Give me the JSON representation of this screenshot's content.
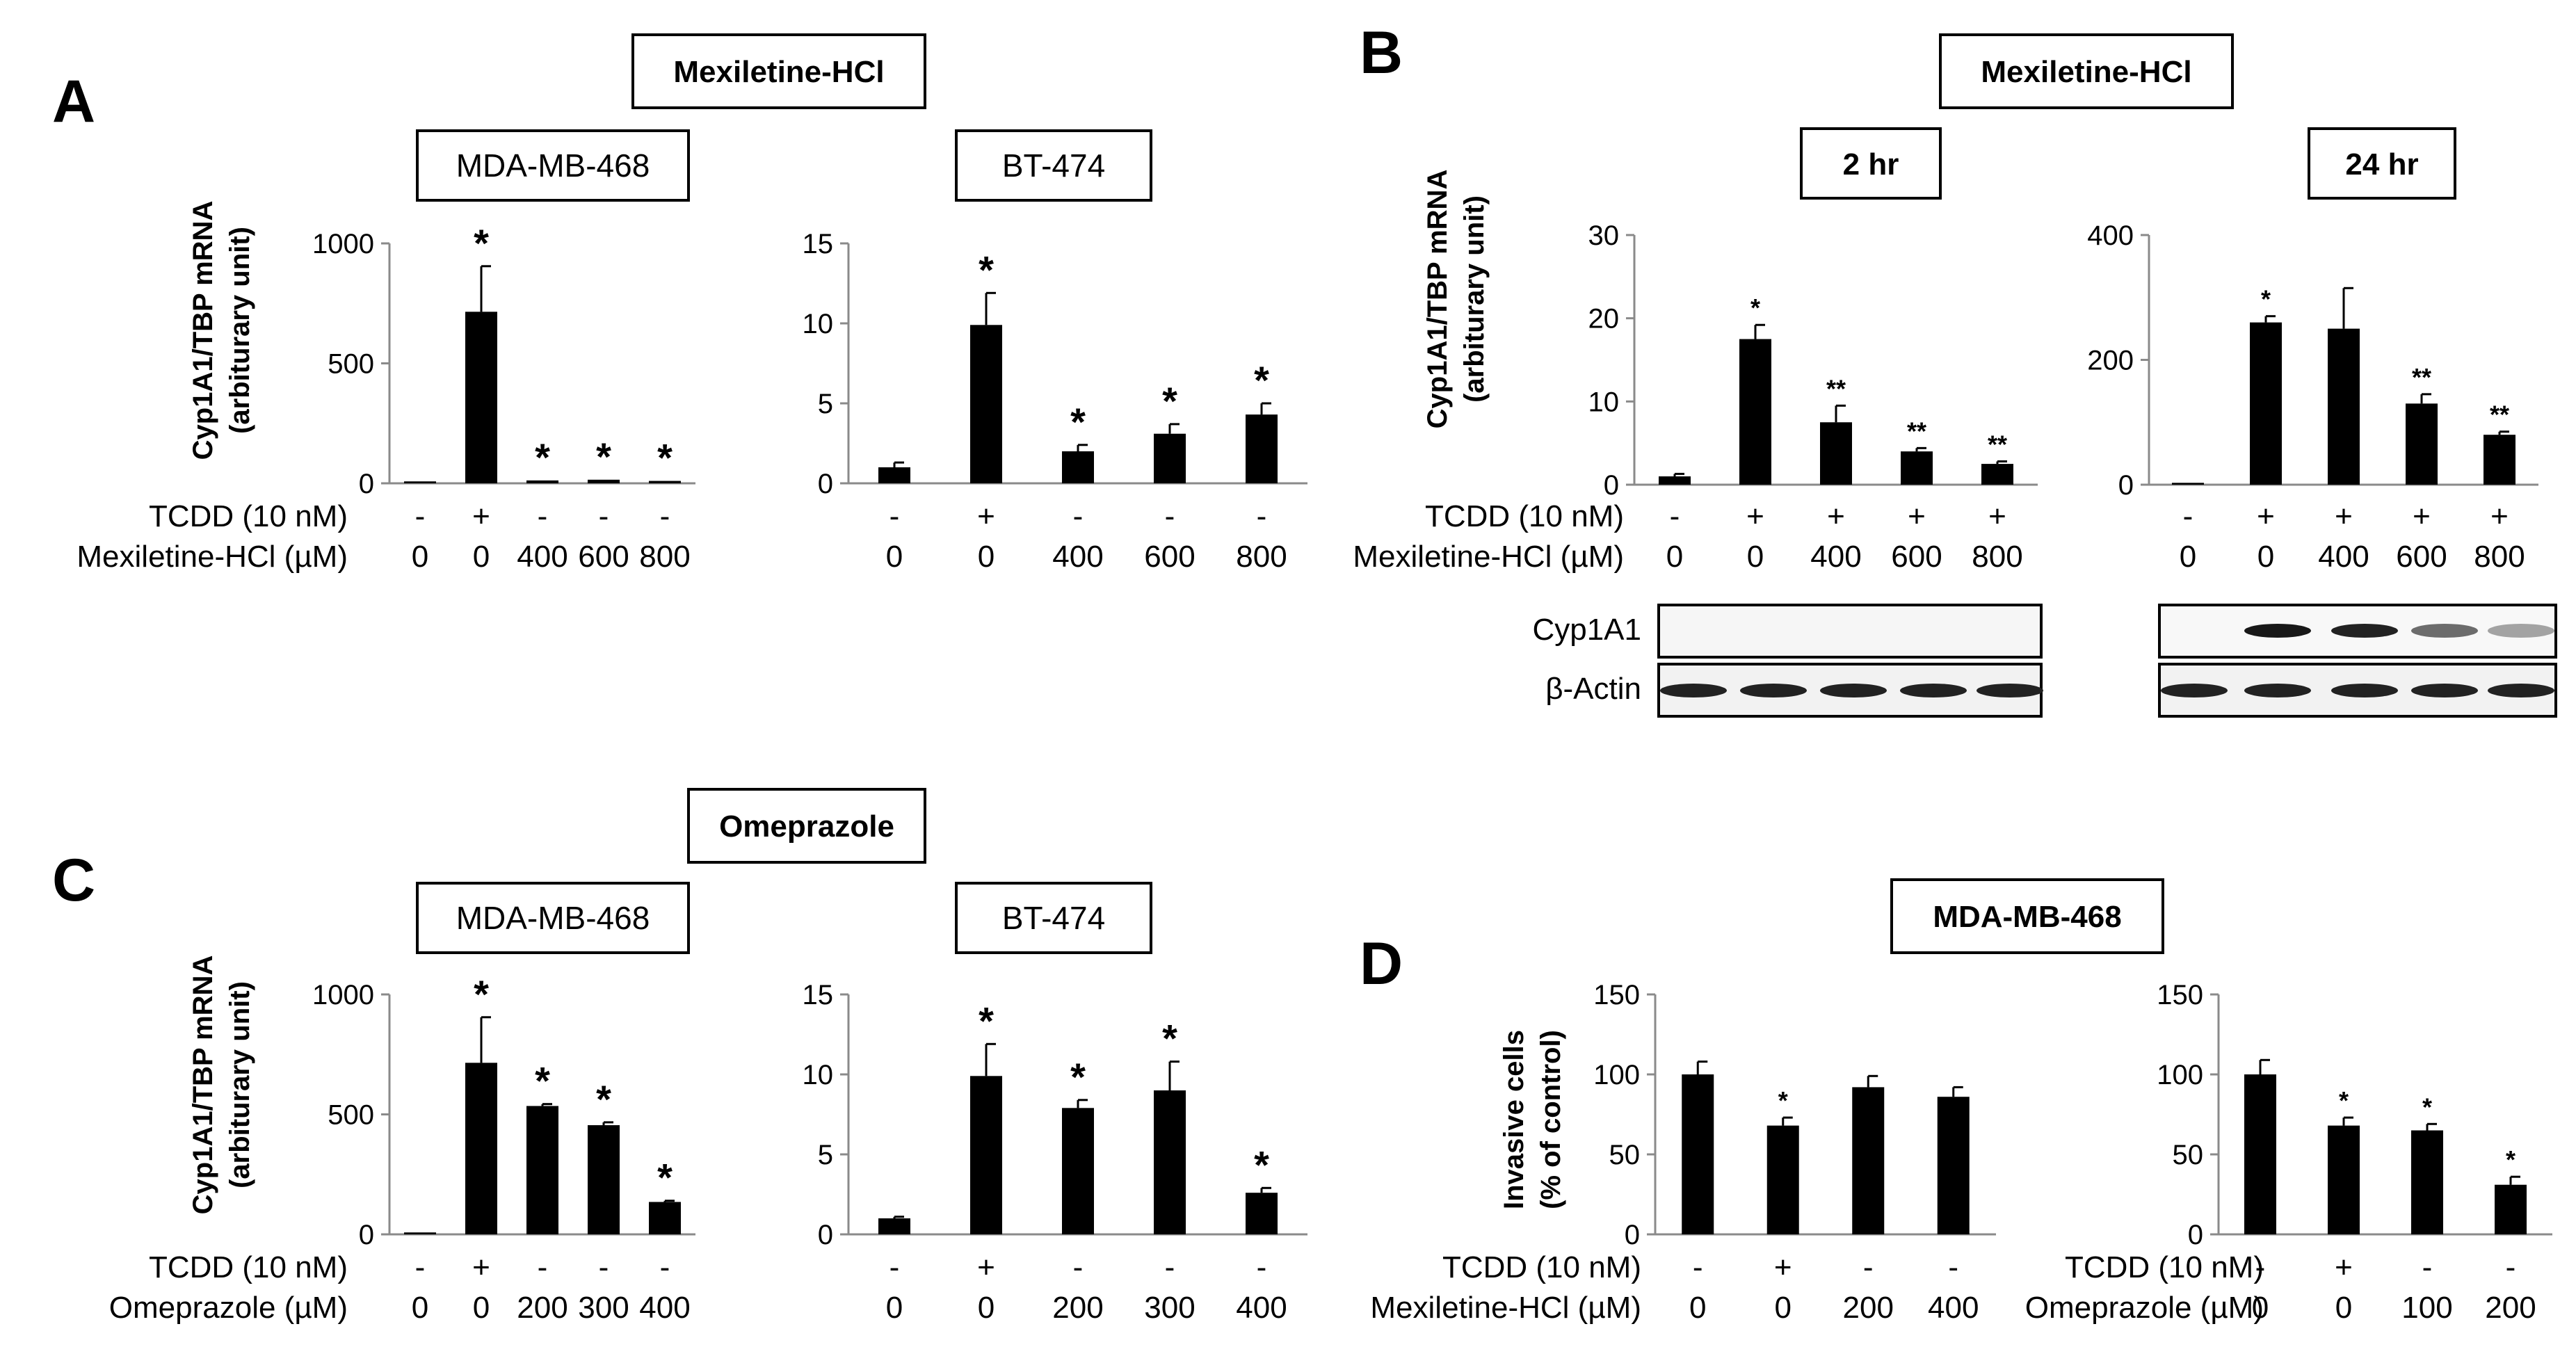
{
  "panels": {
    "A": {
      "letter": "A",
      "title": "Mexiletine-HCl",
      "ylabel_line1": "Cyp1A1/TBP mRNA",
      "ylabel_line2": "(arbiturary unit)"
    },
    "B": {
      "letter": "B",
      "title": "Mexiletine-HCl",
      "ylabel_line1": "Cyp1A1/TBP mRNA",
      "ylabel_line2": "(arbiturary unit)"
    },
    "C": {
      "letter": "C",
      "title": "Omeprazole",
      "ylabel_line1": "Cyp1A1/TBP mRNA",
      "ylabel_line2": "(arbiturary unit)"
    },
    "D": {
      "letter": "D",
      "title": "MDA-MB-468",
      "ylabel_line1": "Invasive cells",
      "ylabel_line2": "(% of control)"
    }
  },
  "western_blot": {
    "labels": [
      "Cyp1A1",
      "β-Actin"
    ],
    "cyp1a1_2hr_band_intensity": [
      0,
      0,
      0,
      0,
      0
    ],
    "cyp1a1_24hr_band_intensity": [
      0,
      0.95,
      0.9,
      0.5,
      0.2
    ],
    "actin_band_intensity": [
      0.9,
      0.9,
      0.9,
      0.9,
      0.9
    ]
  },
  "chart_data": [
    {
      "id": "A1",
      "type": "bar",
      "title": "MDA-MB-468",
      "ylim": [
        0,
        1000
      ],
      "yticks": [
        0,
        500,
        1000
      ],
      "ylabel": "Cyp1A1/TBP mRNA (arbiturary unit)",
      "values": [
        8,
        715,
        12,
        15,
        10
      ],
      "errors": [
        0,
        190,
        0,
        0,
        0
      ],
      "sig": [
        "",
        "*",
        "*",
        "*",
        "*"
      ],
      "conditions": [
        {
          "label": "TCDD (10 nM)",
          "values": [
            "-",
            "+",
            "-",
            "-",
            "-"
          ]
        },
        {
          "label": "Mexiletine-HCl (µM)",
          "values": [
            "0",
            "0",
            "400",
            "600",
            "800"
          ]
        }
      ]
    },
    {
      "id": "A2",
      "type": "bar",
      "title": "BT-474",
      "ylim": [
        0,
        15
      ],
      "yticks": [
        0,
        5,
        10,
        15
      ],
      "values": [
        1.0,
        9.9,
        2.0,
        3.1,
        4.3
      ],
      "errors": [
        0.3,
        2.0,
        0.4,
        0.6,
        0.7
      ],
      "sig": [
        "",
        "*",
        "*",
        "*",
        "*"
      ],
      "conditions": [
        {
          "label": "",
          "values": [
            "-",
            "+",
            "-",
            "-",
            "-"
          ]
        },
        {
          "label": "",
          "values": [
            "0",
            "0",
            "400",
            "600",
            "800"
          ]
        }
      ]
    },
    {
      "id": "B1",
      "type": "bar",
      "title": "2 hr",
      "ylim": [
        0,
        30
      ],
      "yticks": [
        0,
        10,
        20,
        30
      ],
      "ylabel": "Cyp1A1/TBP mRNA (arbiturary unit)",
      "values": [
        1.0,
        17.5,
        7.5,
        4.0,
        2.5
      ],
      "errors": [
        0.3,
        1.7,
        2.0,
        0.4,
        0.3
      ],
      "sig": [
        "",
        "*",
        "**",
        "**",
        "**"
      ],
      "conditions": [
        {
          "label": "TCDD (10 nM)",
          "values": [
            "-",
            "+",
            "+",
            "+",
            "+"
          ]
        },
        {
          "label": "Mexiletine-HCl (µM)",
          "values": [
            "0",
            "0",
            "400",
            "600",
            "800"
          ]
        }
      ]
    },
    {
      "id": "B2",
      "type": "bar",
      "title": "24 hr",
      "ylim": [
        0,
        400
      ],
      "yticks": [
        0,
        200,
        400
      ],
      "values": [
        3,
        260,
        250,
        130,
        80
      ],
      "errors": [
        0,
        10,
        65,
        15,
        5
      ],
      "sig": [
        "",
        "*",
        "",
        "**",
        "**"
      ],
      "conditions": [
        {
          "label": "",
          "values": [
            "-",
            "+",
            "+",
            "+",
            "+"
          ]
        },
        {
          "label": "",
          "values": [
            "0",
            "0",
            "400",
            "600",
            "800"
          ]
        }
      ]
    },
    {
      "id": "C1",
      "type": "bar",
      "title": "MDA-MB-468",
      "ylim": [
        0,
        1000
      ],
      "yticks": [
        0,
        500,
        1000
      ],
      "ylabel": "Cyp1A1/TBP mRNA (arbiturary unit)",
      "values": [
        8,
        715,
        535,
        455,
        135
      ],
      "errors": [
        0,
        190,
        8,
        12,
        5
      ],
      "sig": [
        "",
        "*",
        "*",
        "*",
        "*"
      ],
      "conditions": [
        {
          "label": "TCDD (10 nM)",
          "values": [
            "-",
            "+",
            "-",
            "-",
            "-"
          ]
        },
        {
          "label": "Omeprazole (µM)",
          "values": [
            "0",
            "0",
            "200",
            "300",
            "400"
          ]
        }
      ]
    },
    {
      "id": "C2",
      "type": "bar",
      "title": "BT-474",
      "ylim": [
        0,
        15
      ],
      "yticks": [
        0,
        5,
        10,
        15
      ],
      "values": [
        1.0,
        9.9,
        7.9,
        9.0,
        2.6
      ],
      "errors": [
        0.1,
        2.0,
        0.5,
        1.8,
        0.3
      ],
      "sig": [
        "",
        "*",
        "*",
        "*",
        "*"
      ],
      "conditions": [
        {
          "label": "",
          "values": [
            "-",
            "+",
            "-",
            "-",
            "-"
          ]
        },
        {
          "label": "",
          "values": [
            "0",
            "0",
            "200",
            "300",
            "400"
          ]
        }
      ]
    },
    {
      "id": "D1",
      "type": "bar",
      "ylim": [
        0,
        150
      ],
      "yticks": [
        0,
        50,
        100,
        150
      ],
      "ylabel": "Invasive cells (% of control)",
      "values": [
        100,
        68,
        92,
        86
      ],
      "errors": [
        8,
        5,
        7,
        6
      ],
      "sig": [
        "",
        "*",
        "",
        ""
      ],
      "conditions": [
        {
          "label": "TCDD (10 nM)",
          "values": [
            "-",
            "+",
            "-",
            "-"
          ]
        },
        {
          "label": "Mexiletine-HCl (µM)",
          "values": [
            "0",
            "0",
            "200",
            "400"
          ]
        }
      ]
    },
    {
      "id": "D2",
      "type": "bar",
      "ylim": [
        0,
        150
      ],
      "yticks": [
        0,
        50,
        100,
        150
      ],
      "values": [
        100,
        68,
        65,
        31
      ],
      "errors": [
        9,
        5,
        4,
        5
      ],
      "sig": [
        "",
        "*",
        "*",
        "*"
      ],
      "conditions": [
        {
          "label": "TCDD (10 nM)",
          "values": [
            "-",
            "+",
            "-",
            "-"
          ]
        },
        {
          "label": "Omeprazole (µM)",
          "values": [
            "0",
            "0",
            "100",
            "200"
          ]
        }
      ]
    }
  ]
}
